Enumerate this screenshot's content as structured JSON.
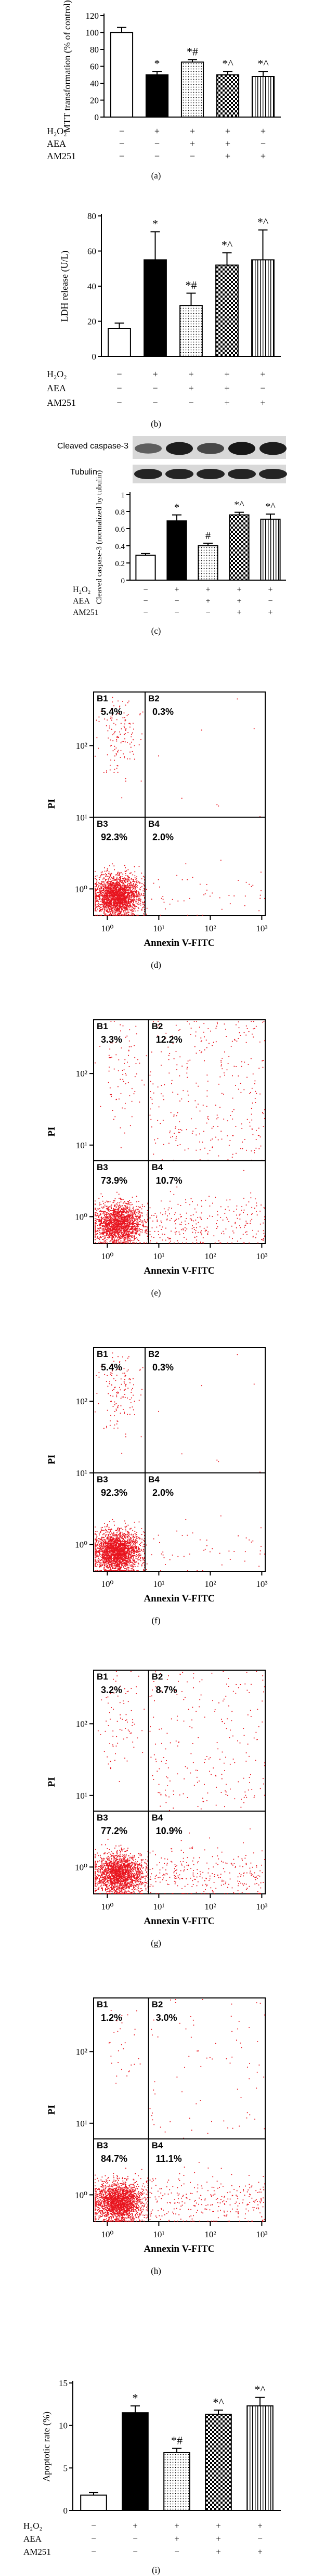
{
  "chart_data": [
    {
      "panel": "(a)",
      "type": "bar",
      "ylabel": "MTT transformation (% of control)",
      "ylim": [
        0,
        120
      ],
      "yticks": [
        0,
        20,
        40,
        60,
        80,
        100,
        120
      ],
      "values": [
        100,
        50,
        65,
        50,
        48
      ],
      "errors": [
        6,
        4,
        3,
        4,
        6
      ],
      "annotations": [
        "",
        "*",
        "*#",
        "*^",
        "*^"
      ],
      "row_labels": [
        "H₂O₂",
        "AEA",
        "AM251"
      ],
      "rows": [
        [
          "−",
          "+",
          "+",
          "+",
          "+"
        ],
        [
          "−",
          "−",
          "+",
          "+",
          "−"
        ],
        [
          "−",
          "−",
          "−",
          "+",
          "+"
        ]
      ]
    },
    {
      "panel": "(b)",
      "type": "bar",
      "ylabel": "LDH release (U/L)",
      "ylim": [
        0,
        80
      ],
      "yticks": [
        0,
        20,
        40,
        60,
        80
      ],
      "values": [
        16,
        55,
        29,
        52,
        55
      ],
      "errors": [
        3,
        16,
        7,
        7,
        17
      ],
      "annotations": [
        "",
        "*",
        "*#",
        "*^",
        "*^"
      ],
      "row_labels": [
        "H₂O₂",
        "AEA",
        "AM251"
      ],
      "rows": [
        [
          "−",
          "+",
          "+",
          "+",
          "+"
        ],
        [
          "−",
          "−",
          "+",
          "+",
          "−"
        ],
        [
          "−",
          "−",
          "−",
          "+",
          "+"
        ]
      ]
    },
    {
      "panel": "(c)",
      "type": "bar",
      "ylabel": "Cleaved caspase-3 (normalized by tubulin)",
      "blot_labels": [
        "Cleaved caspase-3",
        "Tubulin"
      ],
      "ylim": [
        0,
        1.0
      ],
      "yticks": [
        0.0,
        0.2,
        0.4,
        0.6,
        0.8,
        1.0
      ],
      "values": [
        0.29,
        0.69,
        0.4,
        0.76,
        0.71
      ],
      "errors": [
        0.02,
        0.07,
        0.03,
        0.03,
        0.06
      ],
      "annotations": [
        "",
        "*",
        "#",
        "*^",
        "*^"
      ],
      "row_labels": [
        "H₂O₂",
        "AEA",
        "AM251"
      ],
      "rows": [
        [
          "−",
          "+",
          "+",
          "+",
          "+"
        ],
        [
          "−",
          "−",
          "+",
          "+",
          "−"
        ],
        [
          "−",
          "−",
          "−",
          "+",
          "+"
        ]
      ]
    },
    {
      "panel": "(d)",
      "type": "scatter",
      "xlabel": "Annexin V-FITC",
      "ylabel": "PI",
      "quadrants": [
        {
          "name": "B1",
          "value": "5.4%"
        },
        {
          "name": "B2",
          "value": "0.3%"
        },
        {
          "name": "B3",
          "value": "92.3%"
        },
        {
          "name": "B4",
          "value": "2.0%"
        }
      ]
    },
    {
      "panel": "(e)",
      "type": "scatter",
      "xlabel": "Annexin V-FITC",
      "ylabel": "PI",
      "quadrants": [
        {
          "name": "B1",
          "value": "3.3%"
        },
        {
          "name": "B2",
          "value": "12.2%"
        },
        {
          "name": "B3",
          "value": "73.9%"
        },
        {
          "name": "B4",
          "value": "10.7%"
        }
      ]
    },
    {
      "panel": "(f)",
      "type": "scatter",
      "xlabel": "Annexin V-FITC",
      "ylabel": "PI",
      "quadrants": [
        {
          "name": "B1",
          "value": "5.4%"
        },
        {
          "name": "B2",
          "value": "0.3%"
        },
        {
          "name": "B3",
          "value": "92.3%"
        },
        {
          "name": "B4",
          "value": "2.0%"
        }
      ]
    },
    {
      "panel": "(g)",
      "type": "scatter",
      "xlabel": "Annexin V-FITC",
      "ylabel": "PI",
      "quadrants": [
        {
          "name": "B1",
          "value": "3.2%"
        },
        {
          "name": "B2",
          "value": "8.7%"
        },
        {
          "name": "B3",
          "value": "77.2%"
        },
        {
          "name": "B4",
          "value": "10.9%"
        }
      ]
    },
    {
      "panel": "(h)",
      "type": "scatter",
      "xlabel": "Annexin V-FITC",
      "ylabel": "PI",
      "quadrants": [
        {
          "name": "B1",
          "value": "1.2%"
        },
        {
          "name": "B2",
          "value": "3.0%"
        },
        {
          "name": "B3",
          "value": "84.7%"
        },
        {
          "name": "B4",
          "value": "11.1%"
        }
      ]
    },
    {
      "panel": "(i)",
      "type": "bar",
      "ylabel": "Apoptotic rate (%)",
      "ylim": [
        0,
        15
      ],
      "yticks": [
        0,
        5,
        10,
        15
      ],
      "values": [
        1.8,
        11.5,
        6.8,
        11.3,
        12.3
      ],
      "errors": [
        0.3,
        0.8,
        0.5,
        0.5,
        1.0
      ],
      "annotations": [
        "",
        "*",
        "*#",
        "*^",
        "*^"
      ],
      "row_labels": [
        "H₂O₂",
        "AEA",
        "AM251"
      ],
      "rows": [
        [
          "−",
          "+",
          "+",
          "+",
          "+"
        ],
        [
          "−",
          "−",
          "+",
          "+",
          "−"
        ],
        [
          "−",
          "−",
          "−",
          "+",
          "+"
        ]
      ]
    }
  ],
  "flow_axis": {
    "ticks": [
      "10⁰",
      "10¹",
      "10²",
      "10³"
    ]
  },
  "colors": {
    "dots": "#e8141e",
    "axis": "#000000"
  }
}
